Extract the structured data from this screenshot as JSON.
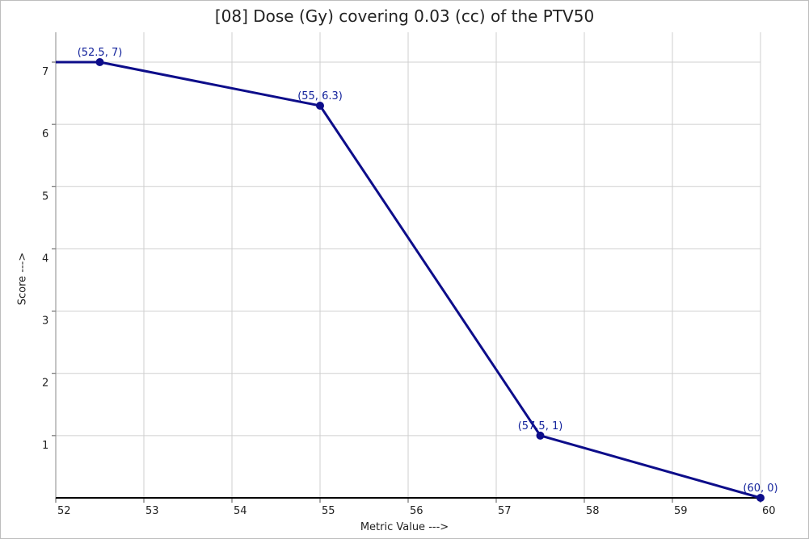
{
  "chart_data": {
    "type": "line",
    "title": "[08]  Dose (Gy) covering 0.03 (cc) of the PTV50",
    "xlabel": "Metric Value --->",
    "ylabel": "Score --->",
    "xlim": [
      52,
      60
    ],
    "ylim": [
      0,
      7
    ],
    "x_ticks": [
      "52",
      "53",
      "54",
      "55",
      "56",
      "57",
      "58",
      "59",
      "60"
    ],
    "y_ticks": [
      "1",
      "2",
      "3",
      "4",
      "5",
      "6",
      "7"
    ],
    "grid": true,
    "series": [
      {
        "x": [
          52,
          52.5,
          55,
          57.5,
          60
        ],
        "y": [
          7,
          7,
          6.3,
          1,
          0
        ],
        "markers": [
          false,
          true,
          true,
          true,
          true
        ],
        "labels": [
          "",
          "(52.5, 7)",
          "(55, 6.3)",
          "(57.5, 1)",
          "(60, 0)"
        ]
      }
    ],
    "colors": {
      "series": "#0d0d8a",
      "grid": "#cfcfcf",
      "axis": "#000000",
      "label": "#0f1f9a"
    }
  }
}
